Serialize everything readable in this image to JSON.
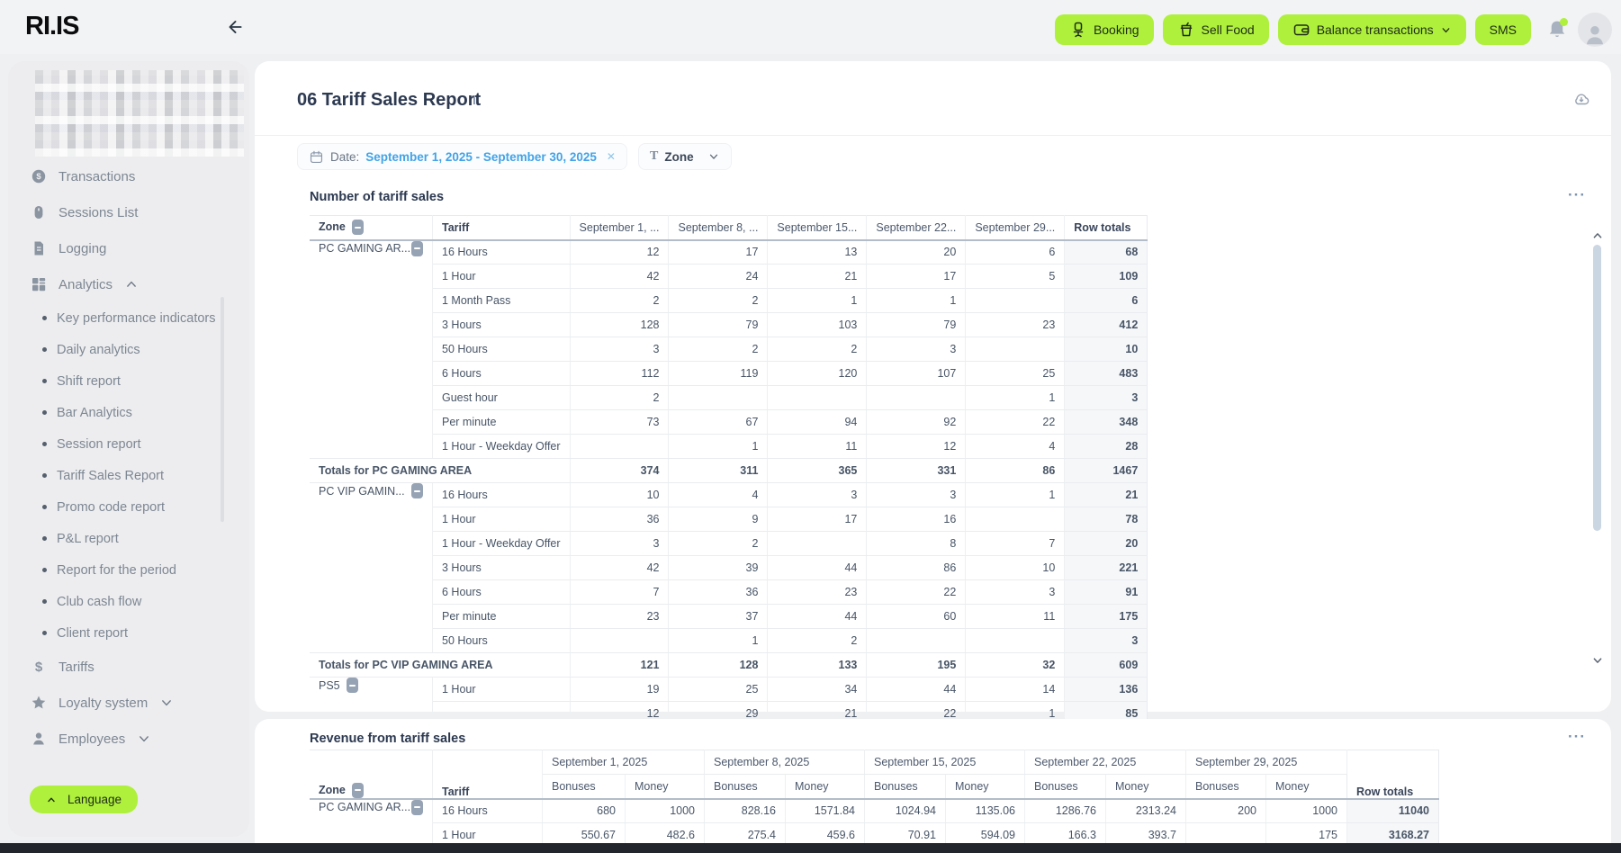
{
  "topbar": {
    "logo": "RI.IS",
    "buttons": [
      {
        "label": "Booking",
        "icon": "gaming-chair"
      },
      {
        "label": "Sell Food",
        "icon": "cup"
      },
      {
        "label": "Balance transactions",
        "icon": "wallet",
        "chevron": "down"
      },
      {
        "label": "SMS"
      }
    ]
  },
  "sidebar": {
    "items": [
      {
        "label": "Transactions",
        "icon": "coin",
        "type": "main"
      },
      {
        "label": "Sessions List",
        "icon": "mouse",
        "type": "main"
      },
      {
        "label": "Logging",
        "icon": "file",
        "type": "main"
      },
      {
        "label": "Analytics",
        "icon": "grid",
        "type": "main",
        "chevron": "up"
      },
      {
        "label": "Key performance indicators",
        "type": "sub"
      },
      {
        "label": "Daily analytics",
        "type": "sub"
      },
      {
        "label": "Shift report",
        "type": "sub"
      },
      {
        "label": "Bar Analytics",
        "type": "sub"
      },
      {
        "label": "Session report",
        "type": "sub"
      },
      {
        "label": "Tariff Sales Report",
        "type": "sub"
      },
      {
        "label": "Promo code report",
        "type": "sub"
      },
      {
        "label": "P&L report",
        "type": "sub"
      },
      {
        "label": "Report for the period",
        "type": "sub"
      },
      {
        "label": "Club cash flow",
        "type": "sub"
      },
      {
        "label": "Client report",
        "type": "sub"
      },
      {
        "label": "Tariffs",
        "icon": "dollar",
        "type": "main"
      },
      {
        "label": "Loyalty system",
        "icon": "star",
        "type": "main",
        "chevron": "down"
      },
      {
        "label": "Employees",
        "icon": "person",
        "type": "main",
        "chevron": "down"
      }
    ],
    "language_label": "Language"
  },
  "page": {
    "title": "06 Tariff Sales Report",
    "info_glyph": "i"
  },
  "filters": {
    "date_label": "Date:",
    "date_value": "September 1, 2025 - September 30, 2025",
    "zone_label": "Zone"
  },
  "tables": {
    "number_of_sales": {
      "title": "Number of tariff sales",
      "headers": [
        "Zone",
        "Tariff",
        "September 1, ...",
        "September 8, ...",
        "September 15...",
        "September 22...",
        "September 29...",
        "Row totals"
      ],
      "groups": [
        {
          "zone": "PC GAMING AR...",
          "rows": [
            [
              "16 Hours",
              12,
              17,
              13,
              20,
              6,
              68
            ],
            [
              "1 Hour",
              42,
              24,
              21,
              17,
              5,
              109
            ],
            [
              "1 Month Pass",
              2,
              2,
              1,
              1,
              "",
              6
            ],
            [
              "3 Hours",
              128,
              79,
              103,
              79,
              23,
              412
            ],
            [
              "50 Hours",
              3,
              2,
              2,
              3,
              "",
              10
            ],
            [
              "6 Hours",
              112,
              119,
              120,
              107,
              25,
              483
            ],
            [
              "Guest hour",
              2,
              "",
              "",
              "",
              1,
              3
            ],
            [
              "Per minute",
              73,
              67,
              94,
              92,
              22,
              348
            ],
            [
              "1 Hour - Weekday Offer",
              "",
              1,
              11,
              12,
              4,
              28
            ]
          ],
          "totals": {
            "label": "Totals for PC GAMING AREA",
            "values": [
              374,
              311,
              365,
              331,
              86
            ],
            "total": 1467
          }
        },
        {
          "zone": "PC VIP GAMIN...",
          "rows": [
            [
              "16 Hours",
              10,
              4,
              3,
              3,
              1,
              21
            ],
            [
              "1 Hour",
              36,
              9,
              17,
              16,
              "",
              78
            ],
            [
              "1 Hour - Weekday Offer",
              3,
              2,
              "",
              8,
              7,
              20
            ],
            [
              "3 Hours",
              42,
              39,
              44,
              86,
              10,
              221
            ],
            [
              "6 Hours",
              7,
              36,
              23,
              22,
              3,
              91
            ],
            [
              "Per minute",
              23,
              37,
              44,
              60,
              11,
              175
            ],
            [
              "50 Hours",
              "",
              1,
              2,
              "",
              "",
              3
            ]
          ],
          "totals": {
            "label": "Totals for PC VIP GAMING AREA",
            "values": [
              121,
              128,
              133,
              195,
              32
            ],
            "total": 609
          }
        },
        {
          "zone": "PS5",
          "rows": [
            [
              "1 Hour",
              19,
              25,
              34,
              44,
              14,
              136
            ],
            [
              "",
              12,
              29,
              21,
              22,
              1,
              85
            ]
          ],
          "totals": null
        }
      ]
    },
    "revenue": {
      "title": "Revenue from tariff sales",
      "date_groups": [
        "September 1, 2025",
        "September 8, 2025",
        "September 15, 2025",
        "September 22, 2025",
        "September 29, 2025"
      ],
      "sub_headers": [
        "Bonuses",
        "Money"
      ],
      "zone_header": "Zone",
      "tariff_header": "Tariff",
      "row_totals_header": "Row totals",
      "groups": [
        {
          "zone": "PC GAMING AR...",
          "rows": [
            [
              "16 Hours",
              "680",
              "1000",
              "828.16",
              "1571.84",
              "1024.94",
              "1135.06",
              "1286.76",
              "2313.24",
              "200",
              "1000",
              "11040"
            ],
            [
              "1 Hour",
              "550.67",
              "482.6",
              "275.4",
              "459.6",
              "70.91",
              "594.09",
              "166.3",
              "393.7",
              "",
              "175",
              "3168.27"
            ]
          ]
        }
      ]
    }
  },
  "colors": {
    "accent_lime": "#aef03c",
    "link_blue": "#41a3e8",
    "text_dark": "#2c3950",
    "text_gray": "#7d8793",
    "table_text": "#485567",
    "row_totals_bg": "#f6f7f9",
    "card_bg": "#ffffff",
    "page_bg": "#eff0f2",
    "bottom_bar": "#22262c"
  }
}
